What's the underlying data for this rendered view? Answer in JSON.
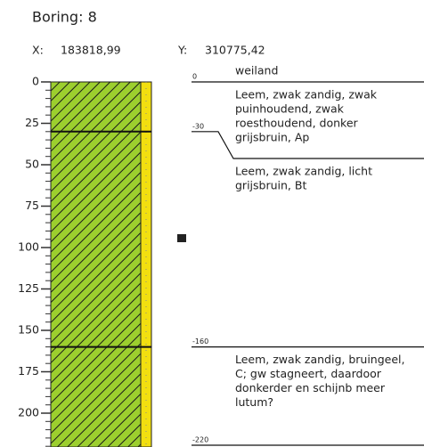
{
  "header": {
    "title": "Boring:  8",
    "x_label": "X:",
    "x_value": "183818,99",
    "y_label": "Y:",
    "y_value": "310775,42"
  },
  "depth_axis": {
    "ticks": [
      0,
      25,
      50,
      75,
      100,
      125,
      150,
      175,
      200
    ]
  },
  "land_use": "weiland",
  "boundaries": [
    0,
    -30,
    -160,
    -220
  ],
  "layers": [
    {
      "lines": [
        "Leem, zwak zandig, zwak",
        "puinhoudend, zwak",
        "roesthoudend, donker",
        "grijsbruin, Ap"
      ]
    },
    {
      "lines": [
        "Leem, zwak zandig, licht",
        "grijsbruin, Bt"
      ]
    },
    {
      "lines": [
        "Leem, zwak zandig, bruingeel,",
        "C; gw stagneert, daardoor",
        "donkerder en schijnb meer",
        "lutum?"
      ]
    }
  ]
}
